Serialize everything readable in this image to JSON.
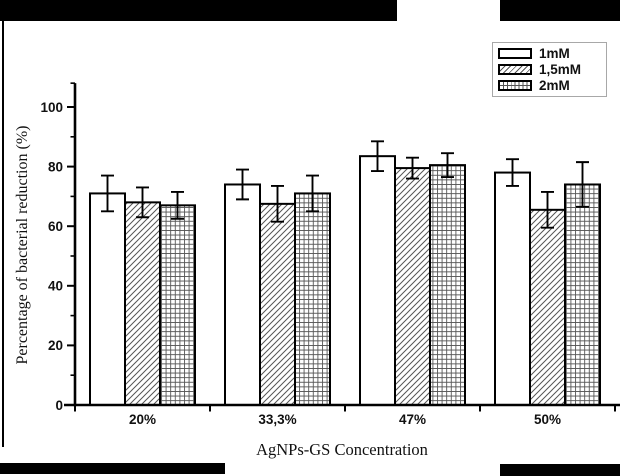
{
  "chart_data": {
    "type": "bar",
    "title": "",
    "xlabel": "AgNPs-GS Concentration",
    "ylabel": "Percentage of bacterial reduction (%)",
    "categories": [
      "20%",
      "33,3%",
      "47%",
      "50%"
    ],
    "series": [
      {
        "name": "1mM",
        "fill": "white",
        "values": [
          71,
          74,
          83.5,
          78
        ],
        "errors": [
          6,
          5,
          5,
          4.5
        ]
      },
      {
        "name": "1,5mM",
        "fill": "diagonal-hatch",
        "values": [
          68,
          67.5,
          79.5,
          65.5
        ],
        "errors": [
          5,
          6,
          3.5,
          6
        ]
      },
      {
        "name": "2mM",
        "fill": "grid-hatch",
        "values": [
          67,
          71,
          80.5,
          74
        ],
        "errors": [
          4.5,
          6,
          4,
          7.5
        ]
      }
    ],
    "ylim": [
      0,
      108
    ],
    "yticks": [
      0,
      20,
      40,
      60,
      80,
      100
    ],
    "minor_yticks": [
      10,
      30,
      50,
      70,
      90,
      108
    ],
    "grid": false,
    "legend_position": "top-right",
    "error_bars": true,
    "colors": {
      "ink": "#000000",
      "bar_fill": "#ffffff",
      "hatch_line": "#555555",
      "legend_border": "#a8a8a8"
    }
  }
}
